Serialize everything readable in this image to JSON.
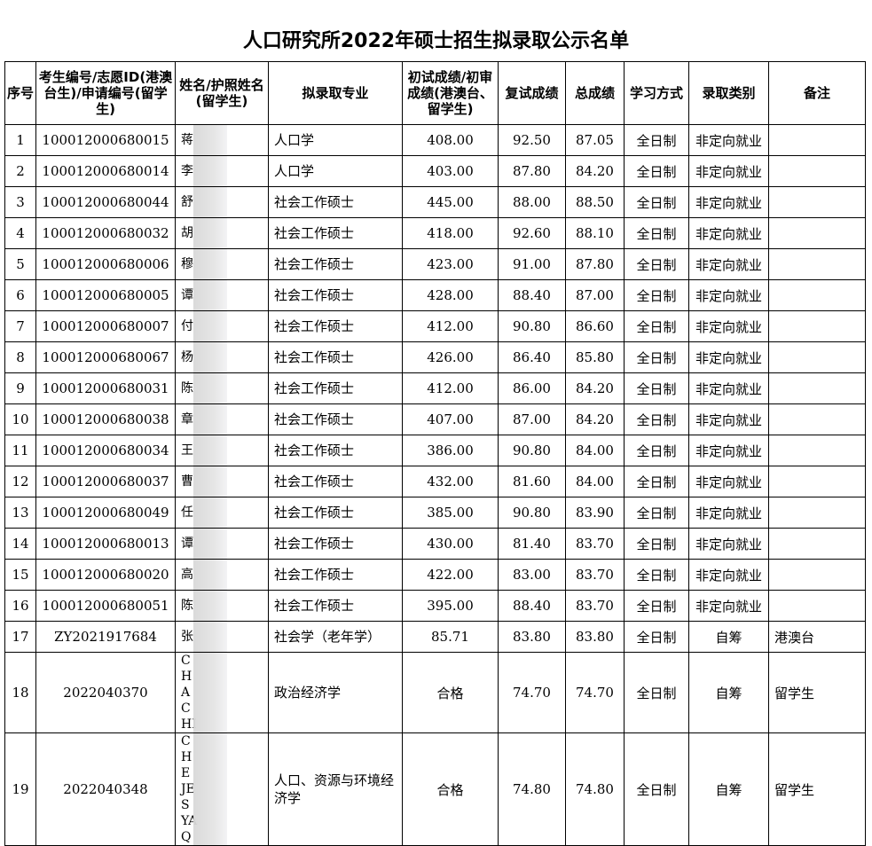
{
  "title": "人口研究所2022年硕士招生拟录取公示名单",
  "headers": [
    "序号",
    "考生编号/志愿ID(港澳台生)/申请编号(留学生)",
    "姓名/护照姓名(留学生)",
    "拟录取专业",
    "初试成绩/初审成绩(港澳台、留学生)",
    "复试成绩",
    "总成绩",
    "学习方式",
    "录取类别",
    "备注"
  ],
  "rows": [
    {
      "no": "1",
      "id": "100012000680015",
      "name": "蒋",
      "major": "人口学",
      "prelim": "408.00",
      "retest": "92.50",
      "total": "87.05",
      "mode": "全日制",
      "category": "非定向就业",
      "note": ""
    },
    {
      "no": "2",
      "id": "100012000680014",
      "name": "李",
      "major": "人口学",
      "prelim": "403.00",
      "retest": "87.80",
      "total": "84.20",
      "mode": "全日制",
      "category": "非定向就业",
      "note": ""
    },
    {
      "no": "3",
      "id": "100012000680044",
      "name": "舒",
      "major": "社会工作硕士",
      "prelim": "445.00",
      "retest": "88.00",
      "total": "88.50",
      "mode": "全日制",
      "category": "非定向就业",
      "note": ""
    },
    {
      "no": "4",
      "id": "100012000680032",
      "name": "胡",
      "major": "社会工作硕士",
      "prelim": "418.00",
      "retest": "92.60",
      "total": "88.10",
      "mode": "全日制",
      "category": "非定向就业",
      "note": ""
    },
    {
      "no": "5",
      "id": "100012000680006",
      "name": "穆",
      "major": "社会工作硕士",
      "prelim": "423.00",
      "retest": "91.00",
      "total": "87.80",
      "mode": "全日制",
      "category": "非定向就业",
      "note": ""
    },
    {
      "no": "6",
      "id": "100012000680005",
      "name": "谭",
      "major": "社会工作硕士",
      "prelim": "428.00",
      "retest": "88.40",
      "total": "87.00",
      "mode": "全日制",
      "category": "非定向就业",
      "note": ""
    },
    {
      "no": "7",
      "id": "100012000680007",
      "name": "付",
      "major": "社会工作硕士",
      "prelim": "412.00",
      "retest": "90.80",
      "total": "86.60",
      "mode": "全日制",
      "category": "非定向就业",
      "note": ""
    },
    {
      "no": "8",
      "id": "100012000680067",
      "name": "杨",
      "major": "社会工作硕士",
      "prelim": "426.00",
      "retest": "86.40",
      "total": "85.80",
      "mode": "全日制",
      "category": "非定向就业",
      "note": ""
    },
    {
      "no": "9",
      "id": "100012000680031",
      "name": "陈",
      "major": "社会工作硕士",
      "prelim": "412.00",
      "retest": "86.00",
      "total": "84.20",
      "mode": "全日制",
      "category": "非定向就业",
      "note": ""
    },
    {
      "no": "10",
      "id": "100012000680038",
      "name": "章",
      "major": "社会工作硕士",
      "prelim": "407.00",
      "retest": "87.00",
      "total": "84.20",
      "mode": "全日制",
      "category": "非定向就业",
      "note": ""
    },
    {
      "no": "11",
      "id": "100012000680034",
      "name": "王",
      "major": "社会工作硕士",
      "prelim": "386.00",
      "retest": "90.80",
      "total": "84.00",
      "mode": "全日制",
      "category": "非定向就业",
      "note": ""
    },
    {
      "no": "12",
      "id": "100012000680037",
      "name": "曹",
      "major": "社会工作硕士",
      "prelim": "432.00",
      "retest": "81.60",
      "total": "84.00",
      "mode": "全日制",
      "category": "非定向就业",
      "note": ""
    },
    {
      "no": "13",
      "id": "100012000680049",
      "name": "任",
      "major": "社会工作硕士",
      "prelim": "385.00",
      "retest": "90.80",
      "total": "83.90",
      "mode": "全日制",
      "category": "非定向就业",
      "note": ""
    },
    {
      "no": "14",
      "id": "100012000680013",
      "name": "谭",
      "major": "社会工作硕士",
      "prelim": "430.00",
      "retest": "81.40",
      "total": "83.70",
      "mode": "全日制",
      "category": "非定向就业",
      "note": ""
    },
    {
      "no": "15",
      "id": "100012000680020",
      "name": "高",
      "major": "社会工作硕士",
      "prelim": "422.00",
      "retest": "83.00",
      "total": "83.70",
      "mode": "全日制",
      "category": "非定向就业",
      "note": ""
    },
    {
      "no": "16",
      "id": "100012000680051",
      "name": "陈",
      "major": "社会工作硕士",
      "prelim": "395.00",
      "retest": "88.40",
      "total": "83.70",
      "mode": "全日制",
      "category": "非定向就业",
      "note": ""
    },
    {
      "no": "17",
      "id": "ZY2021917684",
      "name": "张",
      "major": "社会学（老年学）",
      "prelim": "85.71",
      "retest": "83.80",
      "total": "83.80",
      "mode": "全日制",
      "category": "自筹",
      "note": "港澳台"
    },
    {
      "no": "18",
      "id": "2022040370",
      "name": "CHA CHI",
      "major": "政治经济学",
      "prelim": "合格",
      "retest": "74.70",
      "total": "74.70",
      "mode": "全日制",
      "category": "自筹",
      "note": "留学生"
    },
    {
      "no": "19",
      "id": "2022040348",
      "name": "CHE JES YAQ",
      "major": "人口、资源与环境经济学",
      "prelim": "合格",
      "retest": "74.80",
      "total": "74.80",
      "mode": "全日制",
      "category": "自筹",
      "note": "留学生"
    }
  ]
}
